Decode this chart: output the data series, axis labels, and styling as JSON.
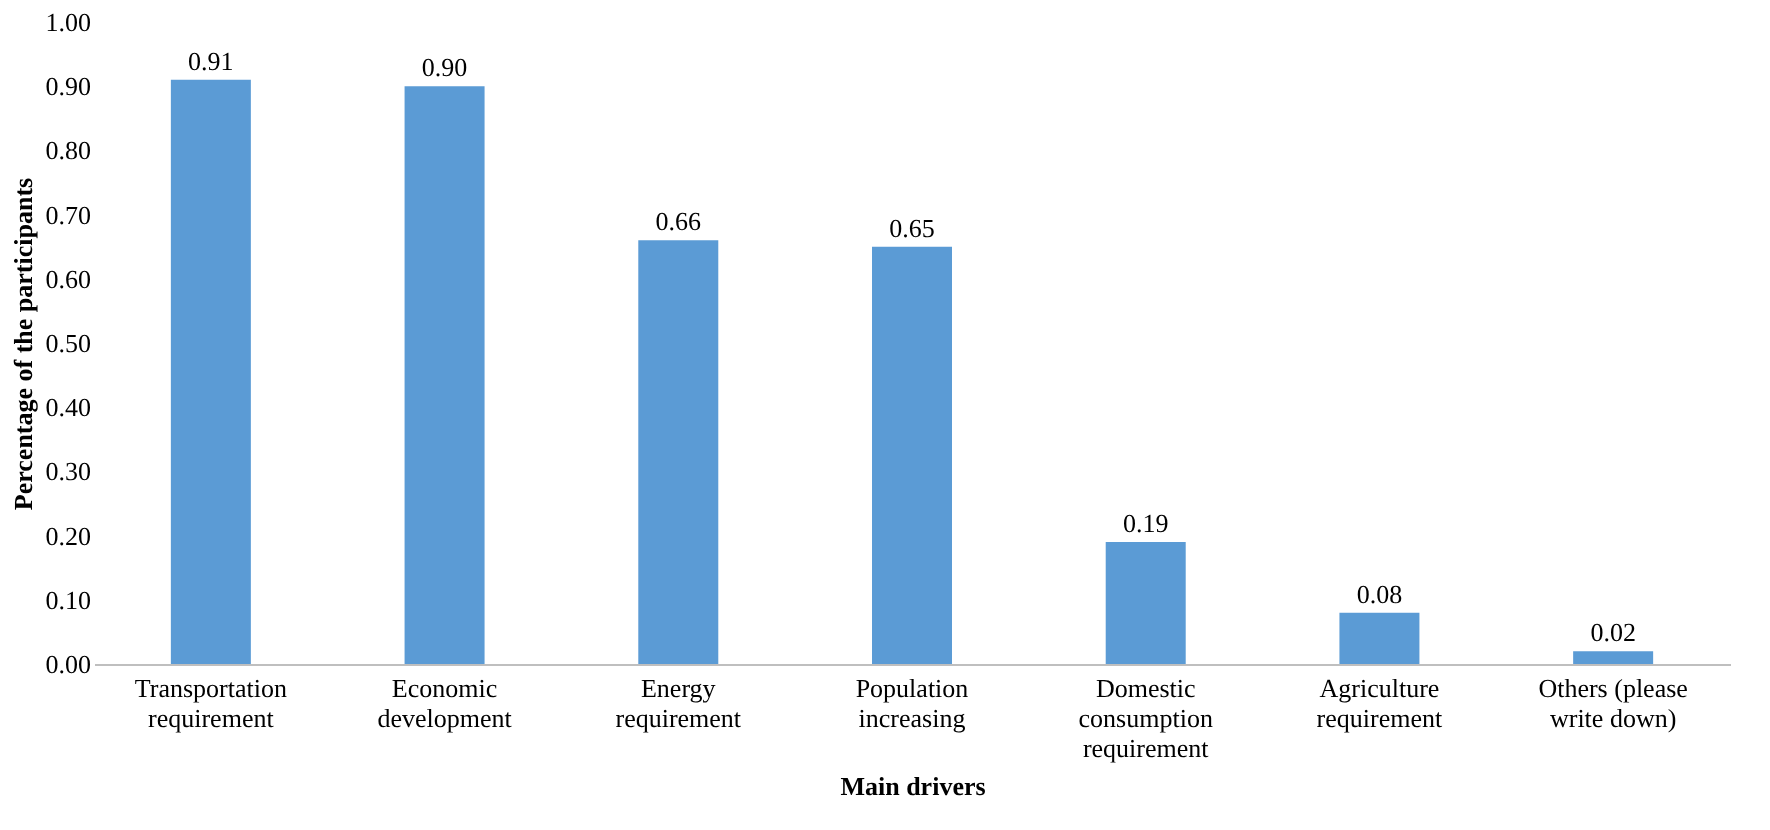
{
  "chart_data": {
    "type": "bar",
    "xlabel": "Main drivers",
    "ylabel": "Percentage of the participants",
    "categories": [
      "Transportation requirement",
      "Economic development",
      "Energy requirement",
      "Population increasing",
      "Domestic consumption requirement",
      "Agriculture requirement",
      "Others (please write down)"
    ],
    "values": [
      0.91,
      0.9,
      0.66,
      0.65,
      0.19,
      0.08,
      0.02
    ],
    "value_labels": [
      "0.91",
      "0.90",
      "0.66",
      "0.65",
      "0.19",
      "0.08",
      "0.02"
    ],
    "color": "#5b9bd5",
    "ylim": [
      0,
      1
    ],
    "yticks": [
      {
        "value": 0,
        "label": "0.00"
      },
      {
        "value": 0.1,
        "label": "0.10"
      },
      {
        "value": 0.2,
        "label": "0.20"
      },
      {
        "value": 0.3,
        "label": "0.30"
      },
      {
        "value": 0.4,
        "label": "0.40"
      },
      {
        "value": 0.5,
        "label": "0.50"
      },
      {
        "value": 0.6,
        "label": "0.60"
      },
      {
        "value": 0.7,
        "label": "0.70"
      },
      {
        "value": 0.8,
        "label": "0.80"
      },
      {
        "value": 0.9,
        "label": "0.90"
      },
      {
        "value": 1.0,
        "label": "1.00"
      }
    ],
    "grid": false
  }
}
